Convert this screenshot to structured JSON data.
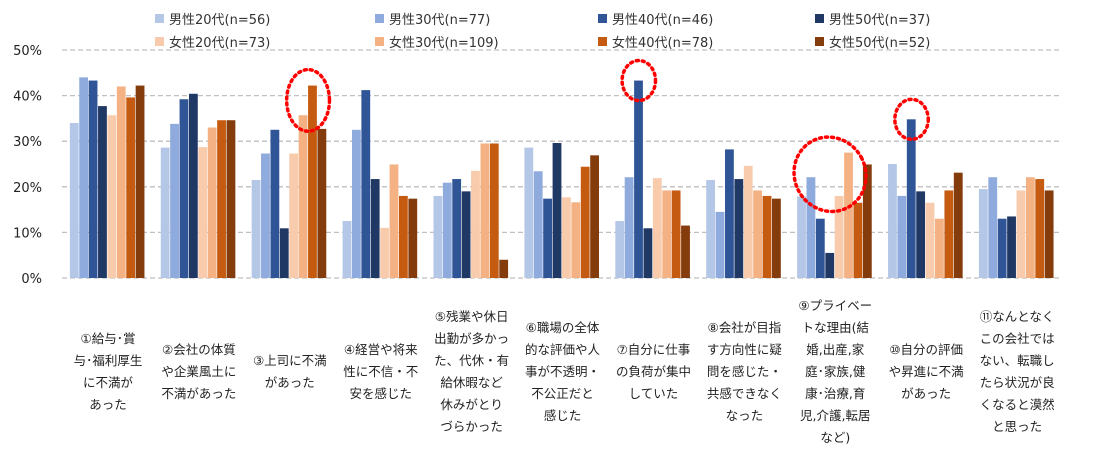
{
  "chart_data": {
    "type": "bar",
    "title": "",
    "xlabel": "",
    "ylabel": "",
    "ylim": [
      0,
      50
    ],
    "yticks": [
      "0%",
      "10%",
      "20%",
      "30%",
      "40%",
      "50%"
    ],
    "grid": true,
    "legend_position": "top",
    "categories": [
      [
        "①給与･賞",
        "与･福利厚生",
        "に不満が",
        "あった"
      ],
      [
        "②会社の体質",
        "や企業風土に",
        "不満があった"
      ],
      [
        "③上司に不満",
        "があった"
      ],
      [
        "④経営や将来",
        "性に不信・不",
        "安を感じた"
      ],
      [
        "⑤残業や休日",
        "出勤が多かっ",
        "た、代休・有",
        "給休暇など",
        "休みがとり",
        "づらかった"
      ],
      [
        "⑥職場の全体",
        "的な評価や人",
        "事が不透明・",
        "不公正だと",
        "感じた"
      ],
      [
        "⑦自分に仕事",
        "の負荷が集中",
        "していた"
      ],
      [
        "⑧会社が目指",
        "す方向性に疑",
        "問を感じた・",
        "共感できなく",
        "なった"
      ],
      [
        "⑨プライベー",
        "トな理由(結",
        "婚,出産,家",
        "庭･家族,健",
        "康･治療,育",
        "児,介護,転居",
        "など)"
      ],
      [
        "⑩自分の評価",
        "や昇進に不満",
        "があった"
      ],
      [
        "⑪なんとなく",
        "この会社では",
        "ない、転職し",
        "たら状況が良",
        "くなると漠然",
        "と思った"
      ]
    ],
    "series": [
      {
        "name": "男性20代(n=56)",
        "color": "#b4c7e7",
        "values": [
          34,
          28.6,
          21.5,
          12.5,
          18,
          28.6,
          12.5,
          21.5,
          17.9,
          25,
          19.5
        ]
      },
      {
        "name": "男性30代(n=77)",
        "color": "#8faadc",
        "values": [
          44,
          33.8,
          27.3,
          32.5,
          20.9,
          23.4,
          22.1,
          14.5,
          22.1,
          18,
          22.1
        ]
      },
      {
        "name": "男性40代(n=46)",
        "color": "#2f5597",
        "values": [
          43.3,
          39.2,
          32.5,
          41.2,
          21.7,
          17.4,
          43.3,
          28.2,
          13,
          34.8,
          13
        ]
      },
      {
        "name": "男性50代(n=37)",
        "color": "#203864",
        "values": [
          37.7,
          40.4,
          10.9,
          21.7,
          19,
          29.6,
          10.9,
          21.7,
          5.5,
          19,
          13.5
        ]
      },
      {
        "name": "女性20代(n=73)",
        "color": "#f8cbad",
        "values": [
          35.7,
          28.7,
          27.3,
          11,
          23.5,
          17.7,
          21.9,
          24.6,
          18,
          16.5,
          19.2
        ]
      },
      {
        "name": "女性30代(n=109)",
        "color": "#f4b183",
        "values": [
          42,
          33,
          35.7,
          24.9,
          29.5,
          16.6,
          19.2,
          19.2,
          27.5,
          13,
          22.1
        ]
      },
      {
        "name": "女性40代(n=78)",
        "color": "#c55a11",
        "values": [
          39.6,
          34.6,
          42.2,
          18,
          29.5,
          24.4,
          19.2,
          18,
          16.5,
          19.2,
          21.7
        ]
      },
      {
        "name": "女性50代(n=52)",
        "color": "#843c0c",
        "values": [
          42.2,
          34.6,
          32.7,
          17.4,
          4,
          26.9,
          11.5,
          17.4,
          24.9,
          23.1,
          19.2
        ]
      }
    ],
    "highlighted": [
      {
        "category": 2,
        "series": [
          5,
          6
        ]
      },
      {
        "category": 6,
        "series": [
          2
        ]
      },
      {
        "category": 8,
        "series": [
          1,
          4,
          5
        ]
      },
      {
        "category": 9,
        "series": [
          2
        ]
      }
    ]
  }
}
